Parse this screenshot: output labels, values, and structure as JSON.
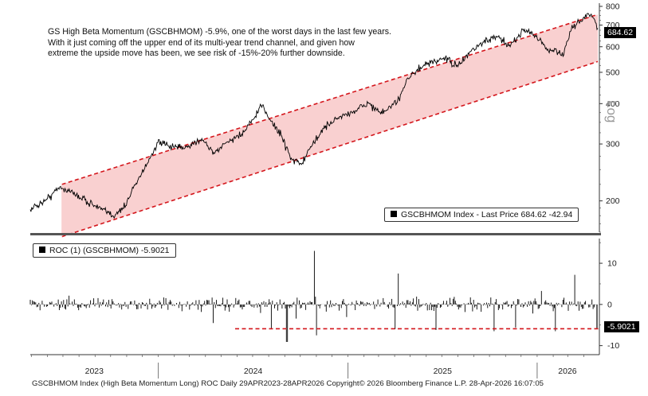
{
  "annotation": {
    "line1": "GS High Beta Momentum (GSCBHMOM) -5.9%, one of the worst days in the last few years.",
    "line2": "With it just coming off the upper end of its multi-year trend channel, and given how",
    "line3": "extreme the upside move has been, we see risk of -15%-20% further downside."
  },
  "top_legend": {
    "text": "GSCBHMOM Index - Last Price 684.62  -42.94"
  },
  "bottom_legend": {
    "text": "ROC (1) (GSCBHMOM) -5.9021"
  },
  "last_price_tag": "684.62",
  "last_roc_tag": "-5.9021",
  "y_axis_scale_label": "Log",
  "footer": "GSCBHMOM Index (High Beta Momentum Long) ROC Daily 29APR2023-28APR2026 Copyright© 2026 Bloomberg Finance L.P.  28-Apr-2026 16:07:05",
  "colors": {
    "line": "#000000",
    "channel_fill": "#f9d0d0",
    "channel_line": "#d4161c",
    "last_tag_bg": "#000000"
  },
  "chart_data": [
    {
      "type": "line",
      "title": "",
      "scale": "log",
      "ylabel": "Log",
      "ylim": [
        160,
        800
      ],
      "yticks": [
        200,
        300,
        400,
        500,
        600,
        700,
        800
      ],
      "xlim": [
        "2023-04-29",
        "2026-04-28"
      ],
      "xtick_labels": [
        "2023",
        "2024",
        "2025",
        "2026"
      ],
      "series": [
        {
          "name": "GSCBHMOM Index - Last Price",
          "points": [
            [
              "2023-04-29",
              188
            ],
            [
              "2023-06-01",
              203
            ],
            [
              "2023-06-25",
              221
            ],
            [
              "2023-07-20",
              212
            ],
            [
              "2023-09-01",
              193
            ],
            [
              "2023-10-05",
              180
            ],
            [
              "2023-10-30",
              193
            ],
            [
              "2023-11-15",
              222
            ],
            [
              "2023-12-10",
              260
            ],
            [
              "2023-12-31",
              303
            ],
            [
              "2024-01-20",
              296
            ],
            [
              "2024-02-20",
              290
            ],
            [
              "2024-03-25",
              312
            ],
            [
              "2024-04-18",
              280
            ],
            [
              "2024-05-10",
              302
            ],
            [
              "2024-06-10",
              322
            ],
            [
              "2024-07-05",
              362
            ],
            [
              "2024-07-20",
              396
            ],
            [
              "2024-08-05",
              353
            ],
            [
              "2024-08-25",
              320
            ],
            [
              "2024-09-15",
              268
            ],
            [
              "2024-10-05",
              262
            ],
            [
              "2024-10-25",
              300
            ],
            [
              "2024-11-15",
              335
            ],
            [
              "2024-12-10",
              360
            ],
            [
              "2025-01-15",
              380
            ],
            [
              "2025-02-10",
              402
            ],
            [
              "2025-03-05",
              372
            ],
            [
              "2025-04-05",
              401
            ],
            [
              "2025-04-25",
              478
            ],
            [
              "2025-05-25",
              520
            ],
            [
              "2025-07-05",
              555
            ],
            [
              "2025-08-01",
              520
            ],
            [
              "2025-08-25",
              580
            ],
            [
              "2025-09-20",
              620
            ],
            [
              "2025-10-15",
              643
            ],
            [
              "2025-11-10",
              600
            ],
            [
              "2025-12-05",
              680
            ],
            [
              "2025-12-31",
              650
            ],
            [
              "2026-01-20",
              585
            ],
            [
              "2026-02-05",
              590
            ],
            [
              "2026-02-20",
              560
            ],
            [
              "2026-03-05",
              668
            ],
            [
              "2026-03-25",
              720
            ],
            [
              "2026-04-10",
              760
            ],
            [
              "2026-04-22",
              727
            ],
            [
              "2026-04-28",
              684.62
            ]
          ]
        }
      ],
      "trend_channel": {
        "upper": [
          [
            "2023-06-29",
            225
          ],
          [
            "2026-04-28",
            755
          ]
        ],
        "lower": [
          [
            "2023-06-29",
            155
          ],
          [
            "2026-04-28",
            540
          ]
        ]
      },
      "last_value": 684.62,
      "change": -42.94
    },
    {
      "type": "bar",
      "title": "",
      "ylim": [
        -12,
        16
      ],
      "yticks": [
        -10,
        0,
        10
      ],
      "series": [
        {
          "name": "ROC (1) (GSCBHMOM)",
          "last_value": -5.9021,
          "notable_points": [
            [
              "2024-04-15",
              -4.5
            ],
            [
              "2024-08-05",
              -5.8
            ],
            [
              "2024-09-05",
              -9.1
            ],
            [
              "2024-10-29",
              13.0
            ],
            [
              "2024-11-01",
              -7.5
            ],
            [
              "2025-04-03",
              -6.0
            ],
            [
              "2025-04-09",
              7.5
            ],
            [
              "2025-06-20",
              -6.2
            ],
            [
              "2025-10-10",
              -6.5
            ],
            [
              "2025-11-20",
              -5.6
            ],
            [
              "2026-02-05",
              -6.5
            ],
            [
              "2026-03-15",
              7.2
            ],
            [
              "2026-04-28",
              -5.9021
            ]
          ]
        }
      ],
      "reference_line": -5.9021
    }
  ]
}
